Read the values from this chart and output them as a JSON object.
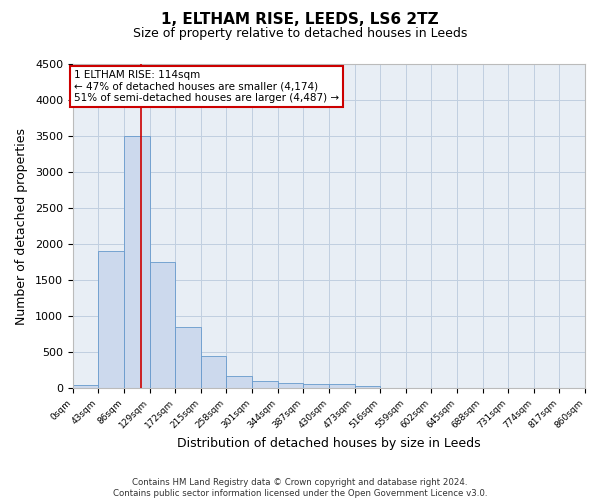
{
  "title": "1, ELTHAM RISE, LEEDS, LS6 2TZ",
  "subtitle": "Size of property relative to detached houses in Leeds",
  "xlabel": "Distribution of detached houses by size in Leeds",
  "ylabel": "Number of detached properties",
  "bar_color": "#ccd9ed",
  "bar_edge_color": "#6699cc",
  "grid_color": "#c0cfe0",
  "background_color": "#e8eef5",
  "bins": [
    0,
    43,
    86,
    129,
    172,
    215,
    258,
    301,
    344,
    387,
    430,
    473,
    516,
    559,
    602,
    645,
    688,
    731,
    774,
    817,
    860
  ],
  "counts": [
    40,
    1900,
    3500,
    1750,
    850,
    450,
    175,
    105,
    75,
    60,
    55,
    30,
    0,
    0,
    0,
    0,
    0,
    0,
    0,
    0
  ],
  "tick_labels": [
    "0sqm",
    "43sqm",
    "86sqm",
    "129sqm",
    "172sqm",
    "215sqm",
    "258sqm",
    "301sqm",
    "344sqm",
    "387sqm",
    "430sqm",
    "473sqm",
    "516sqm",
    "559sqm",
    "602sqm",
    "645sqm",
    "688sqm",
    "731sqm",
    "774sqm",
    "817sqm",
    "860sqm"
  ],
  "property_size": 114,
  "property_label": "1 ELTHAM RISE: 114sqm",
  "annotation_line1": "← 47% of detached houses are smaller (4,174)",
  "annotation_line2": "51% of semi-detached houses are larger (4,487) →",
  "vline_color": "#cc0000",
  "annotation_box_edge": "#cc0000",
  "ylim": [
    0,
    4500
  ],
  "yticks": [
    0,
    500,
    1000,
    1500,
    2000,
    2500,
    3000,
    3500,
    4000,
    4500
  ],
  "footer_line1": "Contains HM Land Registry data © Crown copyright and database right 2024.",
  "footer_line2": "Contains public sector information licensed under the Open Government Licence v3.0."
}
